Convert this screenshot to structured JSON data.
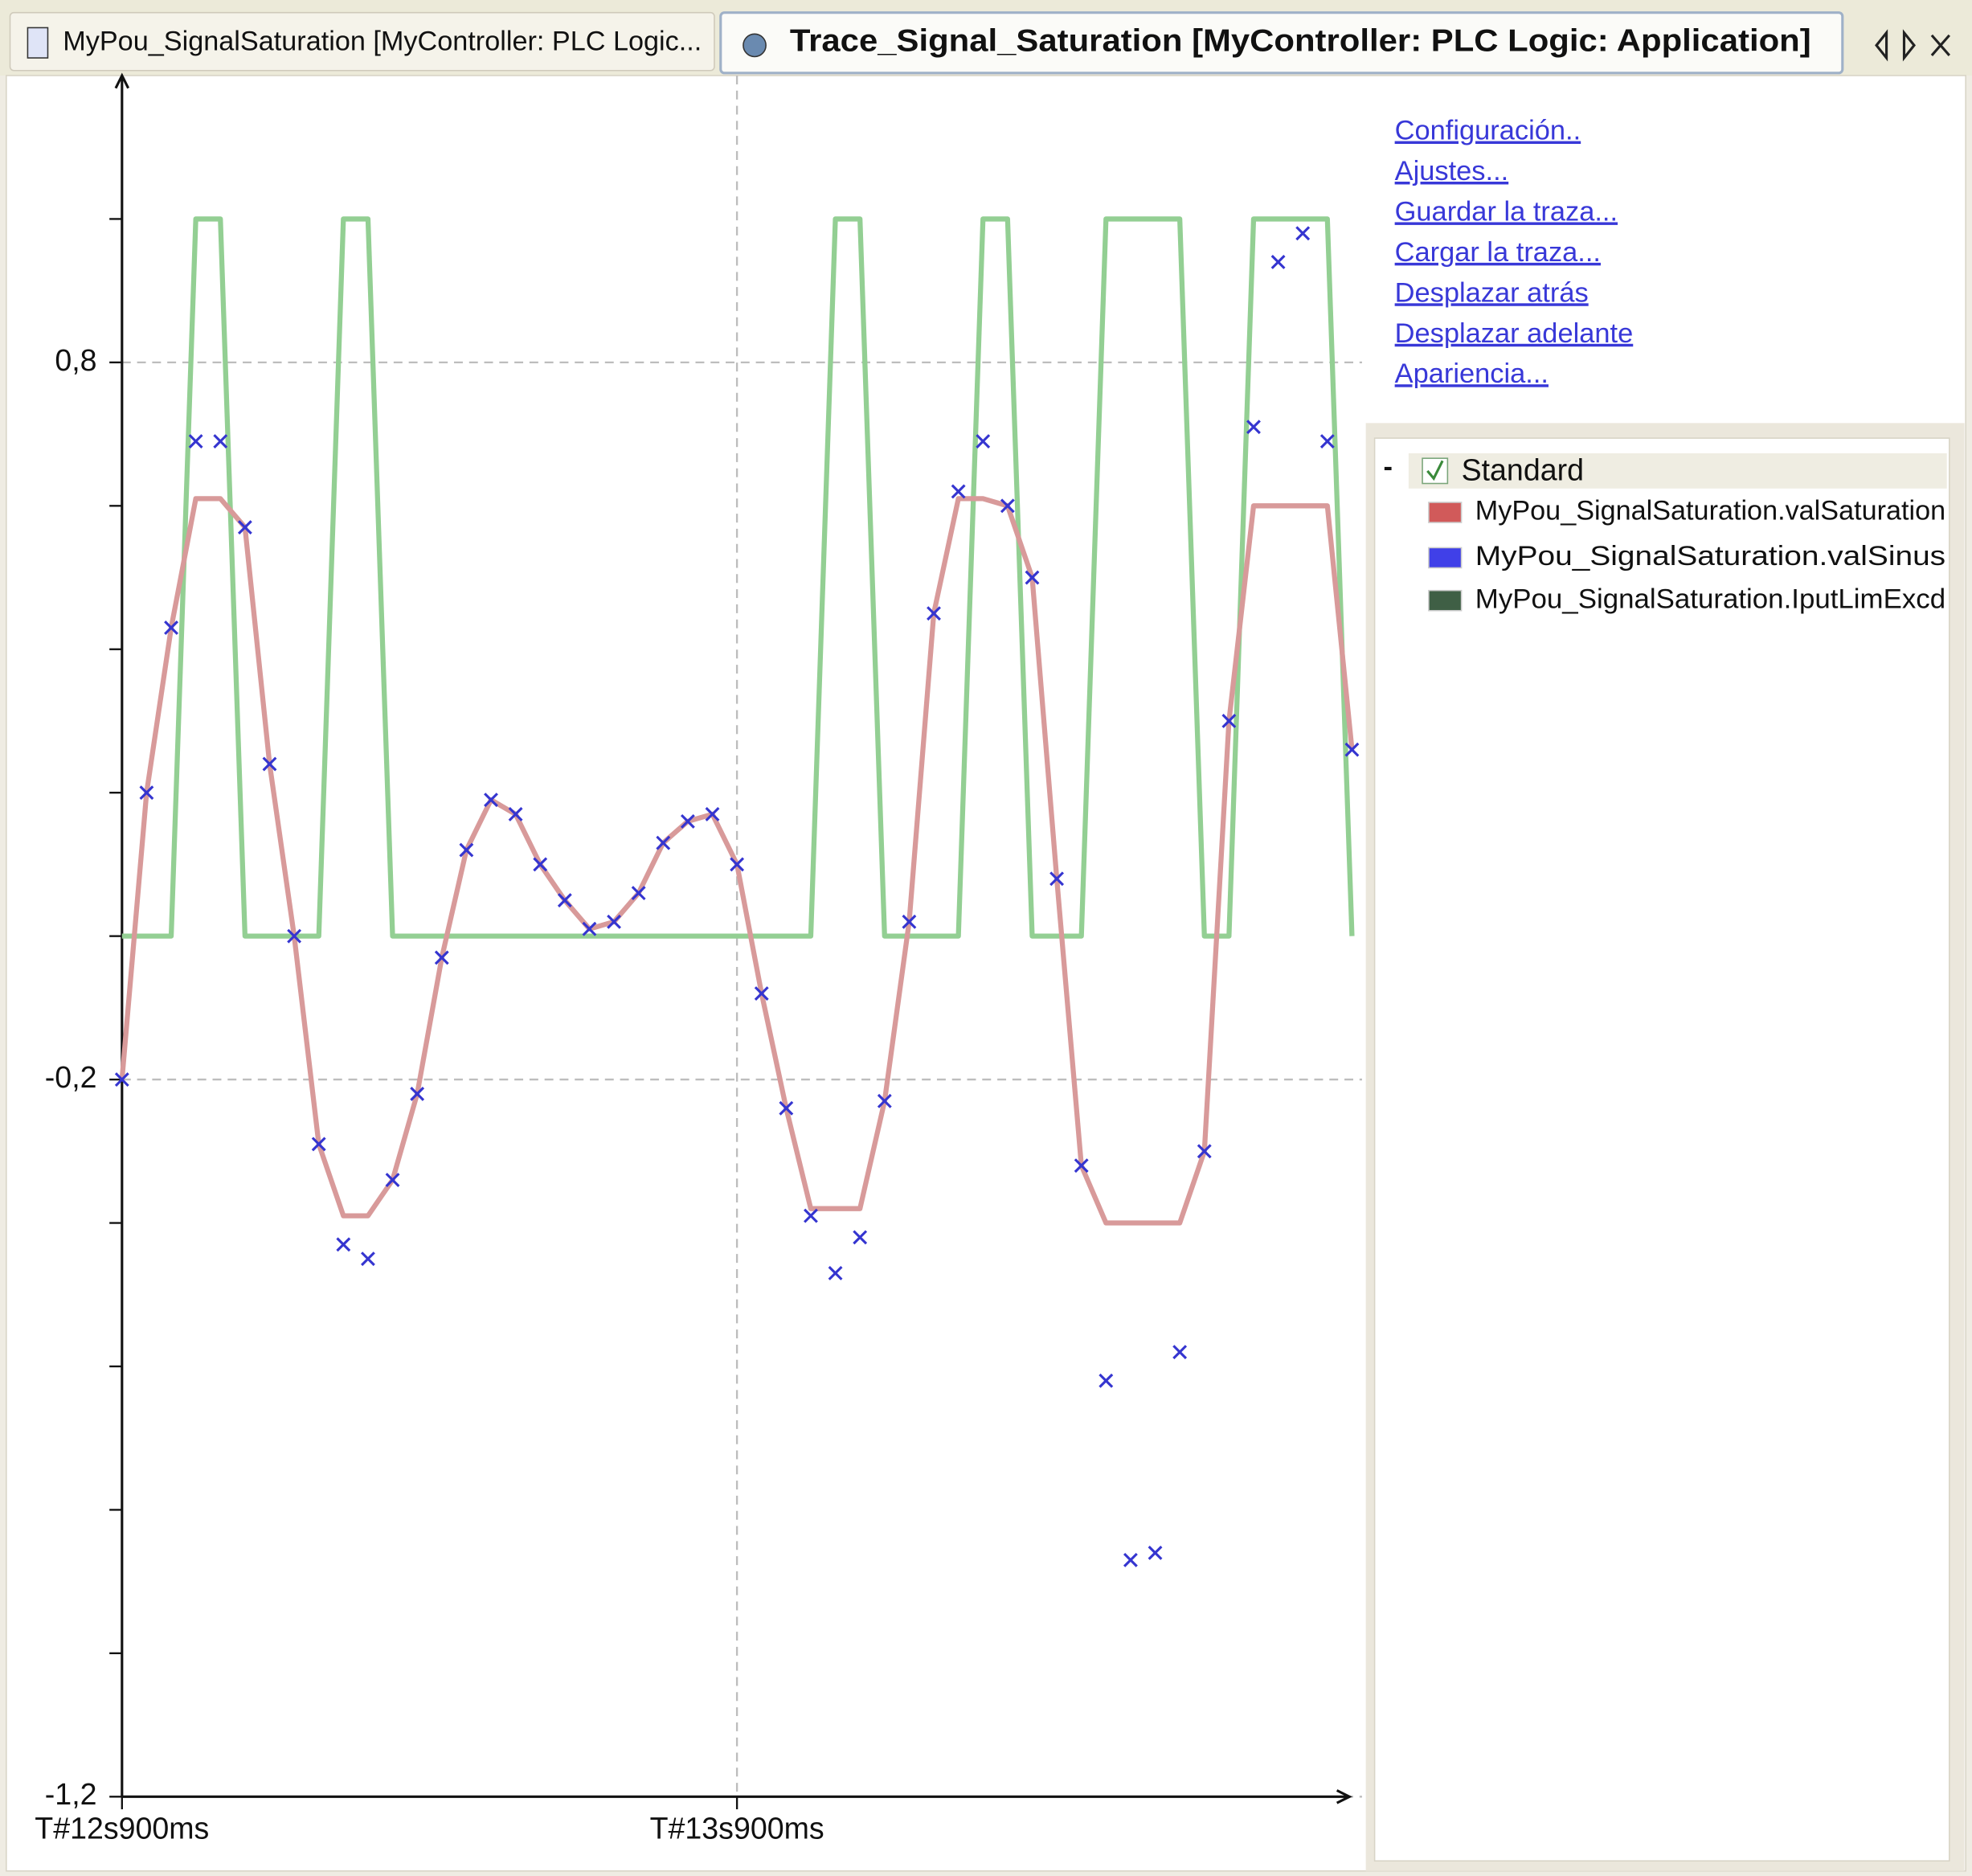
{
  "tabs": [
    "MyPou_SignalSaturation [MyController: PLC Logic...",
    "Trace_Signal_Saturation [MyController: PLC Logic: Application]"
  ],
  "links": [
    "Configuración..",
    "Ajustes...",
    "Guardar la traza...",
    "Cargar la traza...",
    "Desplazar atrás",
    "Desplazar adelante",
    "Apariencia..."
  ],
  "legend_tree": {
    "toggle": "-",
    "group": "Standard"
  },
  "chart_data": {
    "type": "line",
    "x": [
      12900,
      12940,
      12980,
      13020,
      13060,
      13100,
      13140,
      13180,
      13220,
      13260,
      13300,
      13340,
      13380,
      13420,
      13460,
      13500,
      13540,
      13580,
      13620,
      13660,
      13700,
      13740,
      13780,
      13820,
      13860,
      13900,
      13940,
      13980,
      14020,
      14060,
      14100,
      14140,
      14180,
      14220,
      14260,
      14300,
      14340,
      14380,
      14420,
      14460,
      14500,
      14540,
      14580,
      14620,
      14660,
      14700,
      14740,
      14780,
      14820,
      14860,
      14900
    ],
    "xlim": [
      12900,
      14900
    ],
    "xticks": [
      {
        "value": 12900,
        "label": "T#12s900ms"
      },
      {
        "value": 13900,
        "label": "T#13s900ms"
      }
    ],
    "ylim": [
      -1.2,
      1.2
    ],
    "yticks": [
      {
        "value": 0.8,
        "label": "0,8"
      },
      {
        "value": -0.2,
        "label": "-0,2"
      },
      {
        "value": -1.2,
        "label": "-1,2"
      }
    ],
    "minor_yticks": [
      1.0,
      0.6,
      0.4,
      0.2,
      0,
      -0.4,
      -0.6,
      -0.8,
      -1.0
    ],
    "grid": true,
    "series": [
      {
        "name": "MyPou_SignalSaturation.IputLimExcd",
        "color": "#93cf93",
        "legend_color": "#3f5f45",
        "marker": "none",
        "values": [
          0,
          0,
          0,
          1,
          1,
          0,
          0,
          0,
          0,
          1,
          1,
          0,
          0,
          0,
          0,
          0,
          0,
          0,
          0,
          0,
          0,
          0,
          0,
          0,
          0,
          0,
          0,
          0,
          0,
          1,
          1,
          0,
          0,
          0,
          0,
          1,
          1,
          0,
          0,
          0,
          1,
          1,
          1,
          1,
          0,
          0,
          1,
          1,
          1,
          1,
          0
        ]
      },
      {
        "name": "MyPou_SignalSaturation.valSaturation",
        "color": "#d89a9a",
        "legend_color": "#d15a5a",
        "marker": "none",
        "values": [
          -0.2,
          0.2,
          0.43,
          0.61,
          0.61,
          0.57,
          0.24,
          0,
          -0.29,
          -0.39,
          -0.39,
          -0.34,
          -0.22,
          -0.03,
          0.12,
          0.19,
          0.17,
          0.1,
          0.05,
          0.01,
          0.02,
          0.06,
          0.13,
          0.16,
          0.17,
          0.1,
          -0.08,
          -0.24,
          -0.38,
          -0.38,
          -0.38,
          -0.23,
          0.02,
          0.45,
          0.61,
          0.61,
          0.6,
          0.5,
          0.08,
          -0.32,
          -0.4,
          -0.4,
          -0.4,
          -0.4,
          -0.3,
          0.3,
          0.6,
          0.6,
          0.6,
          0.6,
          0.26
        ]
      },
      {
        "name": "MyPou_SignalSaturation.valSinus",
        "color": "#3535d0",
        "legend_color": "#4040e8",
        "marker": "x",
        "values": [
          -0.2,
          0.2,
          0.43,
          0.69,
          0.69,
          0.57,
          0.24,
          0,
          -0.29,
          -0.43,
          -0.45,
          -0.34,
          -0.22,
          -0.03,
          0.12,
          0.19,
          0.17,
          0.1,
          0.05,
          0.01,
          0.02,
          0.06,
          0.13,
          0.16,
          0.17,
          0.1,
          -0.08,
          -0.24,
          -0.39,
          -0.47,
          -0.42,
          -0.23,
          0.02,
          0.45,
          0.62,
          0.69,
          0.6,
          0.5,
          0.08,
          -0.32,
          -0.62,
          -0.87,
          -0.86,
          -0.58,
          -0.3,
          0.3,
          0.71,
          0.94,
          0.98,
          0.69,
          0.26
        ]
      }
    ]
  }
}
